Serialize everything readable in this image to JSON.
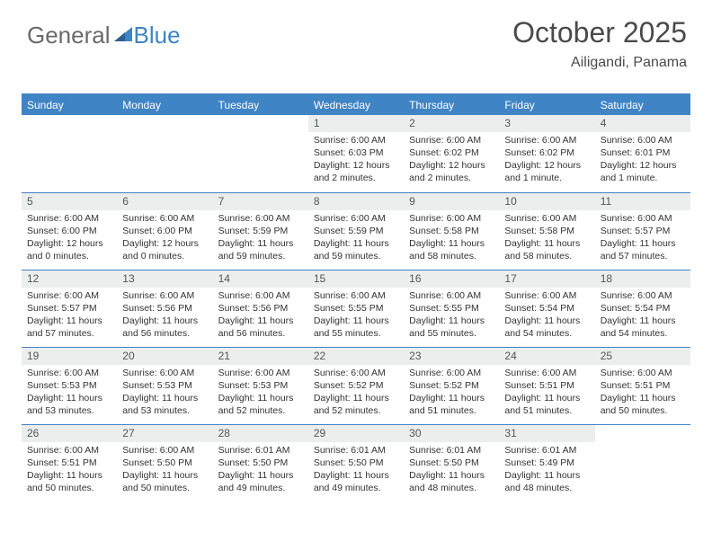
{
  "logo": {
    "word1": "General",
    "word2": "Blue"
  },
  "title": "October 2025",
  "location": "Ailigandi, Panama",
  "colors": {
    "accent": "#3f84c4",
    "header_text": "#4a4a4a",
    "body_text": "#333333",
    "logo_gray": "#6a6a6a",
    "daynum_bg": "#eceded",
    "background": "#ffffff"
  },
  "days_of_week": [
    "Sunday",
    "Monday",
    "Tuesday",
    "Wednesday",
    "Thursday",
    "Friday",
    "Saturday"
  ],
  "labels": {
    "sunrise_prefix": "Sunrise: ",
    "sunset_prefix": "Sunset: ",
    "daylight_prefix": "Daylight: "
  },
  "weeks": [
    [
      {
        "blank": true
      },
      {
        "blank": true
      },
      {
        "blank": true
      },
      {
        "day": "1",
        "sunrise": "6:00 AM",
        "sunset": "6:03 PM",
        "daylight_l1": "12 hours",
        "daylight_l2": "and 2 minutes."
      },
      {
        "day": "2",
        "sunrise": "6:00 AM",
        "sunset": "6:02 PM",
        "daylight_l1": "12 hours",
        "daylight_l2": "and 2 minutes."
      },
      {
        "day": "3",
        "sunrise": "6:00 AM",
        "sunset": "6:02 PM",
        "daylight_l1": "12 hours",
        "daylight_l2": "and 1 minute."
      },
      {
        "day": "4",
        "sunrise": "6:00 AM",
        "sunset": "6:01 PM",
        "daylight_l1": "12 hours",
        "daylight_l2": "and 1 minute."
      }
    ],
    [
      {
        "day": "5",
        "sunrise": "6:00 AM",
        "sunset": "6:00 PM",
        "daylight_l1": "12 hours",
        "daylight_l2": "and 0 minutes."
      },
      {
        "day": "6",
        "sunrise": "6:00 AM",
        "sunset": "6:00 PM",
        "daylight_l1": "12 hours",
        "daylight_l2": "and 0 minutes."
      },
      {
        "day": "7",
        "sunrise": "6:00 AM",
        "sunset": "5:59 PM",
        "daylight_l1": "11 hours",
        "daylight_l2": "and 59 minutes."
      },
      {
        "day": "8",
        "sunrise": "6:00 AM",
        "sunset": "5:59 PM",
        "daylight_l1": "11 hours",
        "daylight_l2": "and 59 minutes."
      },
      {
        "day": "9",
        "sunrise": "6:00 AM",
        "sunset": "5:58 PM",
        "daylight_l1": "11 hours",
        "daylight_l2": "and 58 minutes."
      },
      {
        "day": "10",
        "sunrise": "6:00 AM",
        "sunset": "5:58 PM",
        "daylight_l1": "11 hours",
        "daylight_l2": "and 58 minutes."
      },
      {
        "day": "11",
        "sunrise": "6:00 AM",
        "sunset": "5:57 PM",
        "daylight_l1": "11 hours",
        "daylight_l2": "and 57 minutes."
      }
    ],
    [
      {
        "day": "12",
        "sunrise": "6:00 AM",
        "sunset": "5:57 PM",
        "daylight_l1": "11 hours",
        "daylight_l2": "and 57 minutes."
      },
      {
        "day": "13",
        "sunrise": "6:00 AM",
        "sunset": "5:56 PM",
        "daylight_l1": "11 hours",
        "daylight_l2": "and 56 minutes."
      },
      {
        "day": "14",
        "sunrise": "6:00 AM",
        "sunset": "5:56 PM",
        "daylight_l1": "11 hours",
        "daylight_l2": "and 56 minutes."
      },
      {
        "day": "15",
        "sunrise": "6:00 AM",
        "sunset": "5:55 PM",
        "daylight_l1": "11 hours",
        "daylight_l2": "and 55 minutes."
      },
      {
        "day": "16",
        "sunrise": "6:00 AM",
        "sunset": "5:55 PM",
        "daylight_l1": "11 hours",
        "daylight_l2": "and 55 minutes."
      },
      {
        "day": "17",
        "sunrise": "6:00 AM",
        "sunset": "5:54 PM",
        "daylight_l1": "11 hours",
        "daylight_l2": "and 54 minutes."
      },
      {
        "day": "18",
        "sunrise": "6:00 AM",
        "sunset": "5:54 PM",
        "daylight_l1": "11 hours",
        "daylight_l2": "and 54 minutes."
      }
    ],
    [
      {
        "day": "19",
        "sunrise": "6:00 AM",
        "sunset": "5:53 PM",
        "daylight_l1": "11 hours",
        "daylight_l2": "and 53 minutes."
      },
      {
        "day": "20",
        "sunrise": "6:00 AM",
        "sunset": "5:53 PM",
        "daylight_l1": "11 hours",
        "daylight_l2": "and 53 minutes."
      },
      {
        "day": "21",
        "sunrise": "6:00 AM",
        "sunset": "5:53 PM",
        "daylight_l1": "11 hours",
        "daylight_l2": "and 52 minutes."
      },
      {
        "day": "22",
        "sunrise": "6:00 AM",
        "sunset": "5:52 PM",
        "daylight_l1": "11 hours",
        "daylight_l2": "and 52 minutes."
      },
      {
        "day": "23",
        "sunrise": "6:00 AM",
        "sunset": "5:52 PM",
        "daylight_l1": "11 hours",
        "daylight_l2": "and 51 minutes."
      },
      {
        "day": "24",
        "sunrise": "6:00 AM",
        "sunset": "5:51 PM",
        "daylight_l1": "11 hours",
        "daylight_l2": "and 51 minutes."
      },
      {
        "day": "25",
        "sunrise": "6:00 AM",
        "sunset": "5:51 PM",
        "daylight_l1": "11 hours",
        "daylight_l2": "and 50 minutes."
      }
    ],
    [
      {
        "day": "26",
        "sunrise": "6:00 AM",
        "sunset": "5:51 PM",
        "daylight_l1": "11 hours",
        "daylight_l2": "and 50 minutes."
      },
      {
        "day": "27",
        "sunrise": "6:00 AM",
        "sunset": "5:50 PM",
        "daylight_l1": "11 hours",
        "daylight_l2": "and 50 minutes."
      },
      {
        "day": "28",
        "sunrise": "6:01 AM",
        "sunset": "5:50 PM",
        "daylight_l1": "11 hours",
        "daylight_l2": "and 49 minutes."
      },
      {
        "day": "29",
        "sunrise": "6:01 AM",
        "sunset": "5:50 PM",
        "daylight_l1": "11 hours",
        "daylight_l2": "and 49 minutes."
      },
      {
        "day": "30",
        "sunrise": "6:01 AM",
        "sunset": "5:50 PM",
        "daylight_l1": "11 hours",
        "daylight_l2": "and 48 minutes."
      },
      {
        "day": "31",
        "sunrise": "6:01 AM",
        "sunset": "5:49 PM",
        "daylight_l1": "11 hours",
        "daylight_l2": "and 48 minutes."
      },
      {
        "blank": true
      }
    ]
  ]
}
